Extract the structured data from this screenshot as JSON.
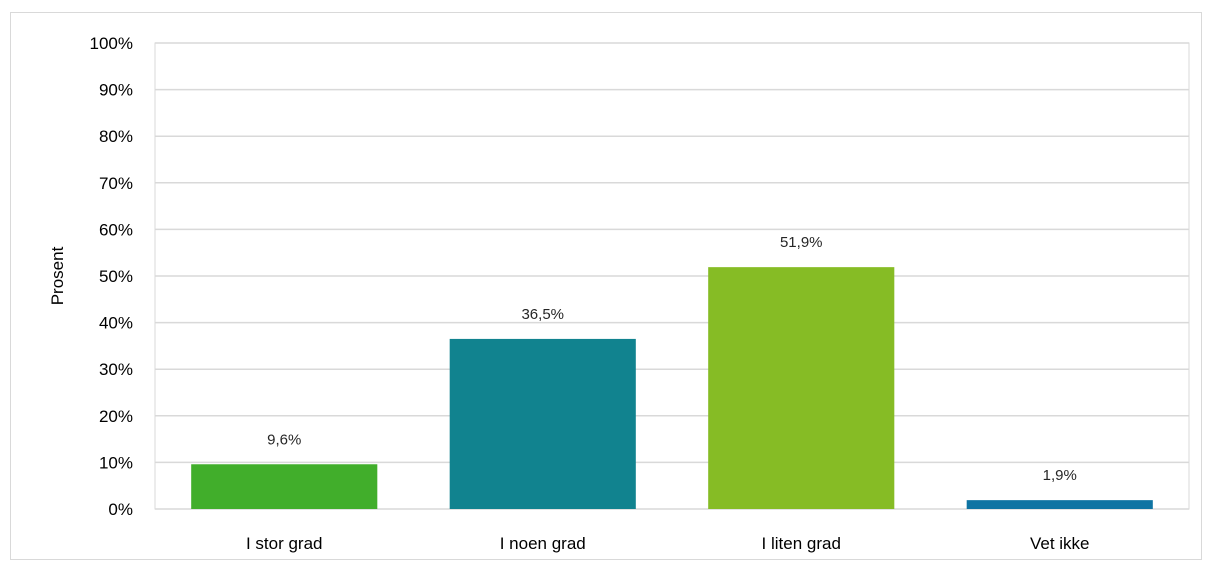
{
  "chart_data": {
    "type": "bar",
    "title": "",
    "xlabel": "",
    "ylabel": "Prosent",
    "categories": [
      "I stor grad",
      "I noen grad",
      "I liten grad",
      "Vet ikke"
    ],
    "values": [
      9.6,
      36.5,
      51.9,
      1.9
    ],
    "data_labels": [
      "9,6%",
      "36,5%",
      "51,9%",
      "1,9%"
    ],
    "bar_colors": [
      "#41ae2b",
      "#11838f",
      "#86bc25",
      "#0f74a3"
    ],
    "ylim": [
      0,
      100
    ],
    "yticks": [
      0,
      10,
      20,
      30,
      40,
      50,
      60,
      70,
      80,
      90,
      100
    ],
    "ytick_labels": [
      "0%",
      "10%",
      "20%",
      "30%",
      "40%",
      "50%",
      "60%",
      "70%",
      "80%",
      "90%",
      "100%"
    ],
    "grid": true,
    "legend": "none"
  }
}
